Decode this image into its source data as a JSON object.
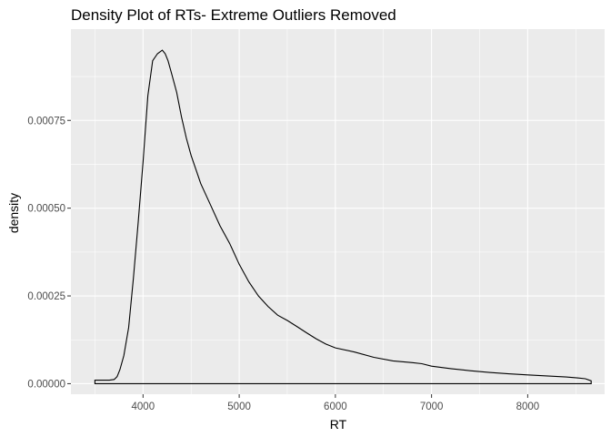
{
  "chart_data": {
    "type": "area",
    "title": "Density Plot of RTs- Extreme Outliers Removed",
    "xlabel": "RT",
    "ylabel": "density",
    "xlim": [
      3250,
      8800
    ],
    "ylim": [
      -3e-05,
      0.00101
    ],
    "x_ticks": [
      4000,
      5000,
      6000,
      7000,
      8000
    ],
    "x_tick_labels": [
      "4000",
      "5000",
      "6000",
      "7000",
      "8000"
    ],
    "y_ticks": [
      0,
      0.00025,
      0.0005,
      0.00075
    ],
    "y_tick_labels": [
      "0.00000",
      "0.00025",
      "0.00050",
      "0.00075"
    ],
    "grid": true,
    "legend": "none",
    "colors": {
      "panel": "#ebebeb",
      "grid_major": "#ffffff",
      "line": "#000000"
    },
    "series": [
      {
        "x": [
          3500,
          3550,
          3600,
          3650,
          3700,
          3730,
          3760,
          3800,
          3850,
          3900,
          3950,
          4000,
          4050,
          4100,
          4150,
          4200,
          4230,
          4260,
          4300,
          4350,
          4400,
          4450,
          4500,
          4550,
          4600,
          4700,
          4800,
          4900,
          5000,
          5100,
          5200,
          5300,
          5400,
          5500,
          5600,
          5700,
          5800,
          5900,
          6000,
          6200,
          6400,
          6600,
          6800,
          6900,
          7000,
          7200,
          7400,
          7600,
          7800,
          8000,
          8200,
          8400,
          8500,
          8600,
          8660
        ],
        "y": [
          1e-05,
          1e-05,
          1e-05,
          1e-05,
          1.2e-05,
          2e-05,
          4e-05,
          8e-05,
          0.00016,
          0.0003,
          0.00046,
          0.00063,
          0.00082,
          0.00092,
          0.00094,
          0.00095,
          0.00094,
          0.00092,
          0.00088,
          0.00083,
          0.00076,
          0.0007,
          0.00065,
          0.00061,
          0.00057,
          0.00051,
          0.00045,
          0.0004,
          0.00034,
          0.00029,
          0.00025,
          0.00022,
          0.000195,
          0.00018,
          0.000163,
          0.000145,
          0.000128,
          0.000113,
          0.000102,
          9e-05,
          7.5e-05,
          6.5e-05,
          6e-05,
          5.7e-05,
          5e-05,
          4.3e-05,
          3.7e-05,
          3.2e-05,
          2.8e-05,
          2.5e-05,
          2.2e-05,
          1.9e-05,
          1.7e-05,
          1.4e-05,
          8e-06
        ]
      }
    ]
  }
}
